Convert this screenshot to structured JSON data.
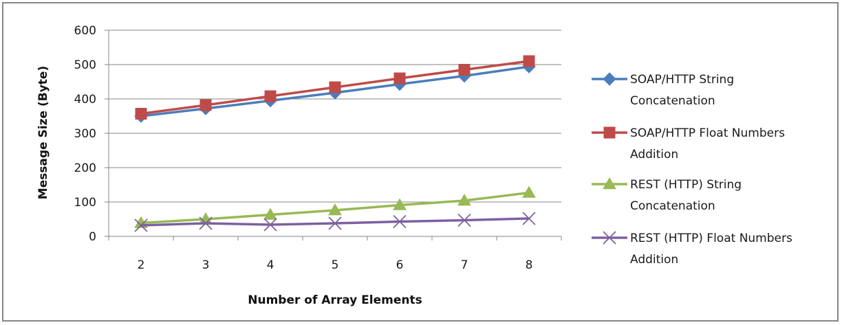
{
  "chart_data": {
    "type": "line",
    "title": "",
    "xlabel": "Number of Array Elements",
    "ylabel": "Message Size (Byte)",
    "categories": [
      2,
      3,
      4,
      5,
      6,
      7,
      8
    ],
    "ylim": [
      0,
      600
    ],
    "yticks": [
      0,
      100,
      200,
      300,
      400,
      500,
      600
    ],
    "grid": true,
    "legend_position": "right",
    "series": [
      {
        "name": "SOAP/HTTP String Concatenation",
        "name_lines": [
          "SOAP/HTTP String",
          "Concatenation"
        ],
        "values": [
          350,
          372,
          395,
          418,
          443,
          467,
          494
        ],
        "color": "#4a7ebb",
        "marker": "diamond"
      },
      {
        "name": "SOAP/HTTP Float Numbers Addition",
        "name_lines": [
          "SOAP/HTTP Float Numbers",
          "Addition"
        ],
        "values": [
          357,
          382,
          408,
          434,
          460,
          485,
          510
        ],
        "color": "#be4b48",
        "marker": "square"
      },
      {
        "name": "REST (HTTP) String Concatenation",
        "name_lines": [
          "REST (HTTP) String",
          "Concatenation"
        ],
        "values": [
          39,
          50,
          63,
          76,
          91,
          104,
          127
        ],
        "color": "#98b954",
        "marker": "triangle"
      },
      {
        "name": "REST (HTTP) Float Numbers Addition",
        "name_lines": [
          "REST (HTTP) Float Numbers",
          "Addition"
        ],
        "values": [
          32,
          38,
          34,
          38,
          43,
          47,
          52
        ],
        "color": "#7d60a0",
        "marker": "x"
      }
    ]
  }
}
